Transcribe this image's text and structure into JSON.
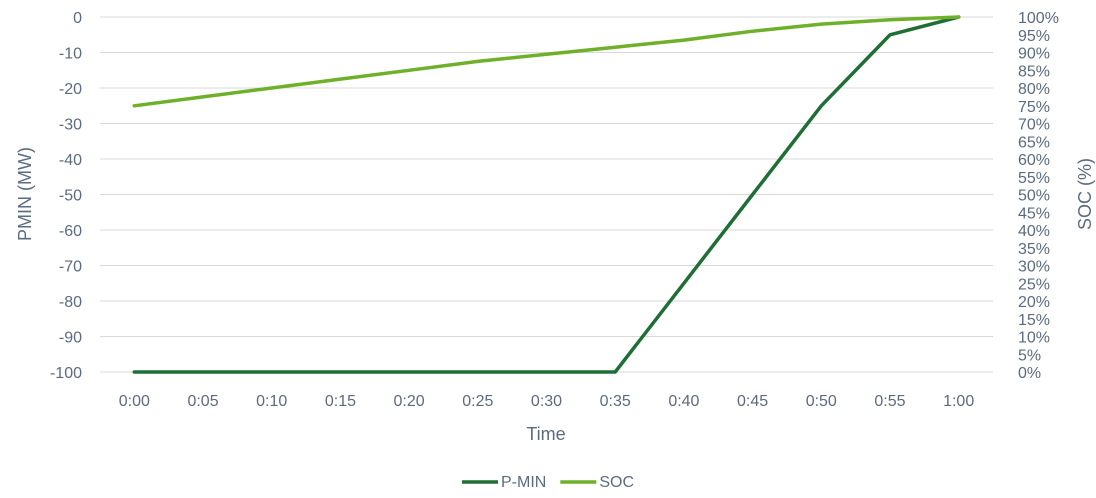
{
  "chart_data": {
    "type": "line",
    "title": "",
    "xlabel": "Time",
    "ylabel": "PMIN (MW)",
    "y2label": "SOC (%)",
    "categories": [
      "0:00",
      "0:05",
      "0:10",
      "0:15",
      "0:20",
      "0:25",
      "0:30",
      "0:35",
      "0:40",
      "0:45",
      "0:50",
      "0:55",
      "1:00"
    ],
    "ylim": [
      -100,
      0
    ],
    "yticks": [
      "0",
      "-10",
      "-20",
      "-30",
      "-40",
      "-50",
      "-60",
      "-70",
      "-80",
      "-90",
      "-100"
    ],
    "y2lim": [
      0,
      100
    ],
    "y2ticks": [
      "100%",
      "95%",
      "90%",
      "85%",
      "80%",
      "75%",
      "70%",
      "65%",
      "60%",
      "55%",
      "50%",
      "45%",
      "40%",
      "35%",
      "30%",
      "25%",
      "20%",
      "15%",
      "10%",
      "5%",
      "0%"
    ],
    "grid": true,
    "legend_position": "bottom",
    "series": [
      {
        "name": "P-MIN",
        "axis": "left",
        "color": "#1e6e35",
        "values": [
          -100,
          -100,
          -100,
          -100,
          -100,
          -100,
          -100,
          -100,
          -75,
          -50,
          -25,
          -5,
          0
        ]
      },
      {
        "name": "SOC",
        "axis": "right",
        "color": "#6fb02a",
        "values": [
          75,
          77.5,
          80,
          82.5,
          85,
          87.5,
          89.5,
          91.5,
          93.5,
          96,
          98,
          99.2,
          100
        ]
      }
    ]
  }
}
